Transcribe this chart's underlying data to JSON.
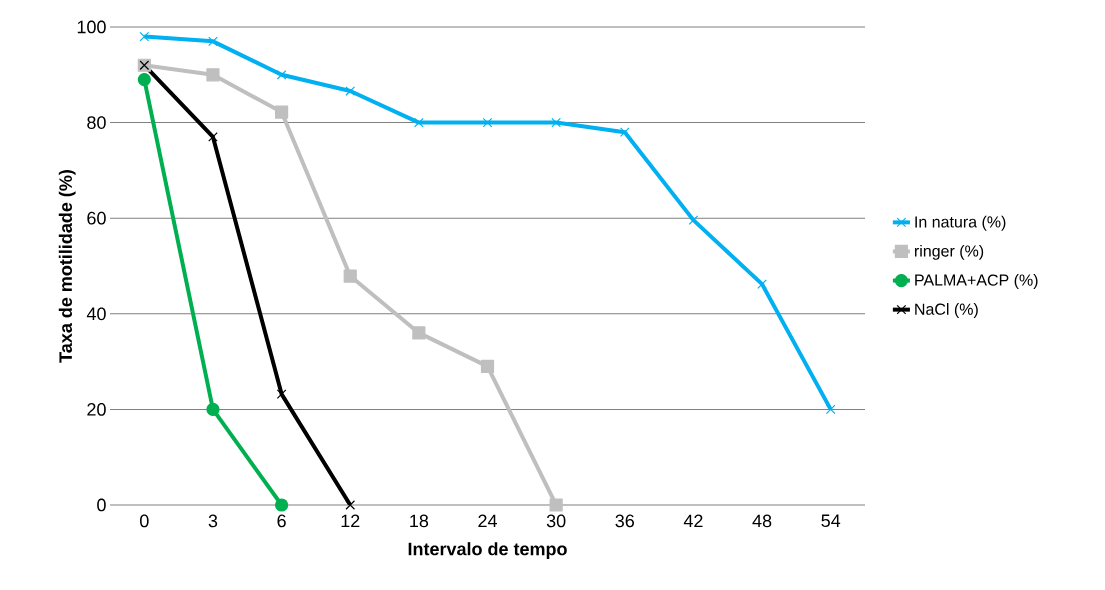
{
  "chart_data": {
    "type": "line",
    "xlabel": "Intervalo de tempo",
    "ylabel": "Taxa de motilidade  (%)",
    "categories": [
      "0",
      "3",
      "6",
      "12",
      "18",
      "24",
      "30",
      "36",
      "42",
      "48",
      "54"
    ],
    "series": [
      {
        "name": "In natura (%)",
        "color": "#00b0f0",
        "marker": "cross",
        "values": [
          98,
          97,
          90,
          86.6,
          80,
          80,
          80,
          78,
          59.6,
          46.2,
          20
        ]
      },
      {
        "name": "ringer (%)",
        "color": "#bfbfbf",
        "marker": "square",
        "values": [
          92,
          90,
          82.2,
          47.9,
          36,
          29,
          0,
          null,
          null,
          null,
          null
        ]
      },
      {
        "name": "PALMA+ACP (%)",
        "color": "#00b050",
        "marker": "circle",
        "values": [
          89,
          20,
          0,
          null,
          null,
          null,
          null,
          null,
          null,
          null,
          null
        ]
      },
      {
        "name": "NaCl (%)",
        "color": "#000000",
        "marker": "cross",
        "values": [
          92,
          77,
          23.2,
          0,
          null,
          null,
          null,
          null,
          null,
          null,
          null
        ]
      }
    ],
    "ylim": [
      0,
      100
    ],
    "yticks": [
      0,
      20,
      40,
      60,
      80,
      100
    ],
    "grid": "y",
    "legend": "right",
    "line_style": "solid"
  }
}
